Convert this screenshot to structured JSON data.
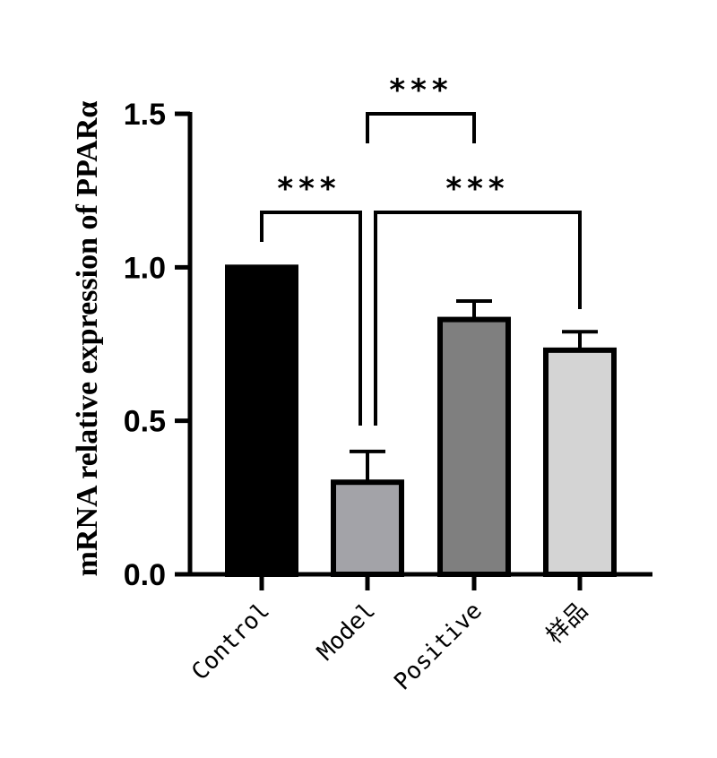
{
  "chart_data": {
    "type": "bar",
    "ylabel": "mRNA relative expression of  PPARα",
    "xlabel": "",
    "ylim": [
      0,
      1.5
    ],
    "yticks": [
      0.0,
      0.5,
      1.0,
      1.5
    ],
    "ytick_labels": [
      "0.0",
      "0.5",
      "1.0",
      "1.5"
    ],
    "categories": [
      "Control",
      "Model",
      "Positive",
      "样品"
    ],
    "values": [
      1.0,
      0.3,
      0.83,
      0.73
    ],
    "error": [
      0.0,
      0.1,
      0.06,
      0.06
    ],
    "colors": [
      "#000000",
      "#a3a3a8",
      "#7f7f7f",
      "#d4d4d4"
    ],
    "grid": false,
    "significance": [
      {
        "from": 0,
        "to": 1,
        "label": "***"
      },
      {
        "from": 1,
        "to": 2,
        "label": "***"
      },
      {
        "from": 1,
        "to": 3,
        "label": "***"
      }
    ]
  }
}
